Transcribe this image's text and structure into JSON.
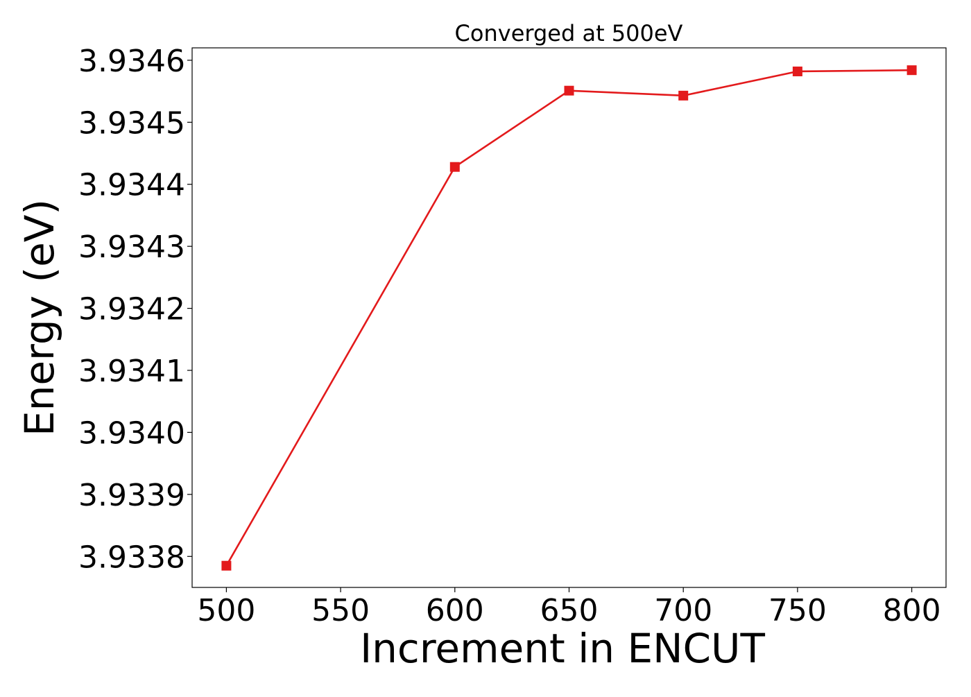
{
  "chart_data": {
    "type": "line",
    "title": "Converged at 500eV",
    "xlabel": "Increment in ENCUT",
    "ylabel": "Energy (eV)",
    "x": [
      500,
      600,
      650,
      700,
      750,
      800
    ],
    "series": [
      {
        "values": [
          3.933785,
          3.934428,
          3.934551,
          3.934543,
          3.934582,
          3.934584
        ],
        "color": "#e31a1c",
        "marker": "square"
      }
    ],
    "xlim": [
      485,
      815
    ],
    "ylim": [
      3.93375,
      3.93462
    ],
    "xticks": [
      500,
      550,
      600,
      650,
      700,
      750,
      800
    ],
    "xtick_labels": [
      "500",
      "550",
      "600",
      "650",
      "700",
      "750",
      "800"
    ],
    "yticks": [
      3.9338,
      3.9339,
      3.934,
      3.9341,
      3.9342,
      3.9343,
      3.9344,
      3.9345,
      3.9346
    ],
    "ytick_labels": [
      "3.9338",
      "3.9339",
      "3.9340",
      "3.9341",
      "3.9342",
      "3.9343",
      "3.9344",
      "3.9345",
      "3.9346"
    ],
    "grid": false,
    "legend": false
  }
}
